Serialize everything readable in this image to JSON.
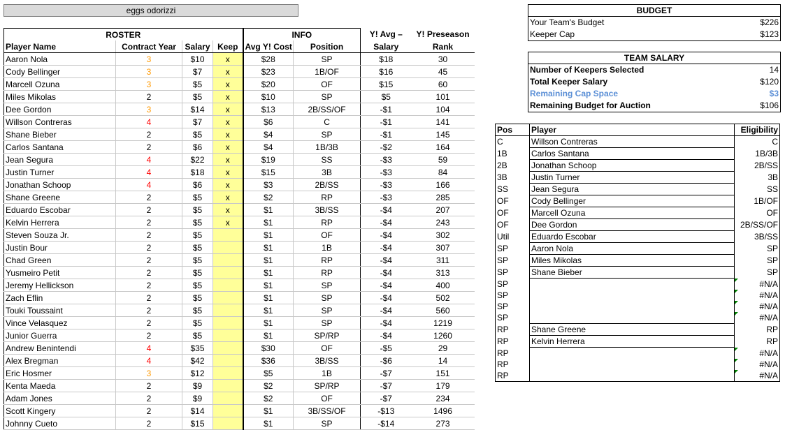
{
  "team_name": "eggs odorizzi",
  "roster": {
    "group_headers": {
      "roster": "ROSTER",
      "info": "INFO",
      "yavg": "Y! Avg –",
      "ypre": "Y! Preseason"
    },
    "col_headers": {
      "name": "Player Name",
      "cy": "Contract Year",
      "sal": "Salary",
      "keep": "Keep",
      "avg": "Avg Y! Cost",
      "pos": "Position",
      "yavg": "Salary",
      "rank": "Rank"
    },
    "rows": [
      {
        "name": "Aaron Nola",
        "cy": "3",
        "cyc": "orange",
        "sal": "$10",
        "keep": "x",
        "avg": "$28",
        "pos": "SP",
        "yavg": "$18",
        "rank": "30"
      },
      {
        "name": "Cody Bellinger",
        "cy": "3",
        "cyc": "orange",
        "sal": "$7",
        "keep": "x",
        "avg": "$23",
        "pos": "1B/OF",
        "yavg": "$16",
        "rank": "45"
      },
      {
        "name": "Marcell Ozuna",
        "cy": "3",
        "cyc": "orange",
        "sal": "$5",
        "keep": "x",
        "avg": "$20",
        "pos": "OF",
        "yavg": "$15",
        "rank": "60"
      },
      {
        "name": "Miles Mikolas",
        "cy": "2",
        "cyc": "",
        "sal": "$5",
        "keep": "x",
        "avg": "$10",
        "pos": "SP",
        "yavg": "$5",
        "rank": "101"
      },
      {
        "name": "Dee Gordon",
        "cy": "3",
        "cyc": "orange",
        "sal": "$14",
        "keep": "x",
        "avg": "$13",
        "pos": "2B/SS/OF",
        "yavg": "-$1",
        "rank": "104"
      },
      {
        "name": "Willson Contreras",
        "cy": "4",
        "cyc": "red",
        "sal": "$7",
        "keep": "x",
        "avg": "$6",
        "pos": "C",
        "yavg": "-$1",
        "rank": "141"
      },
      {
        "name": "Shane Bieber",
        "cy": "2",
        "cyc": "",
        "sal": "$5",
        "keep": "x",
        "avg": "$4",
        "pos": "SP",
        "yavg": "-$1",
        "rank": "145"
      },
      {
        "name": "Carlos Santana",
        "cy": "2",
        "cyc": "",
        "sal": "$6",
        "keep": "x",
        "avg": "$4",
        "pos": "1B/3B",
        "yavg": "-$2",
        "rank": "164"
      },
      {
        "name": "Jean Segura",
        "cy": "4",
        "cyc": "red",
        "sal": "$22",
        "keep": "x",
        "avg": "$19",
        "pos": "SS",
        "yavg": "-$3",
        "rank": "59"
      },
      {
        "name": "Justin Turner",
        "cy": "4",
        "cyc": "red",
        "sal": "$18",
        "keep": "x",
        "avg": "$15",
        "pos": "3B",
        "yavg": "-$3",
        "rank": "84"
      },
      {
        "name": "Jonathan Schoop",
        "cy": "4",
        "cyc": "red",
        "sal": "$6",
        "keep": "x",
        "avg": "$3",
        "pos": "2B/SS",
        "yavg": "-$3",
        "rank": "166"
      },
      {
        "name": "Shane Greene",
        "cy": "2",
        "cyc": "",
        "sal": "$5",
        "keep": "x",
        "avg": "$2",
        "pos": "RP",
        "yavg": "-$3",
        "rank": "285"
      },
      {
        "name": "Eduardo Escobar",
        "cy": "2",
        "cyc": "",
        "sal": "$5",
        "keep": "x",
        "avg": "$1",
        "pos": "3B/SS",
        "yavg": "-$4",
        "rank": "207"
      },
      {
        "name": "Kelvin Herrera",
        "cy": "2",
        "cyc": "",
        "sal": "$5",
        "keep": "x",
        "avg": "$1",
        "pos": "RP",
        "yavg": "-$4",
        "rank": "243"
      },
      {
        "name": "Steven Souza Jr.",
        "cy": "2",
        "cyc": "",
        "sal": "$5",
        "keep": "",
        "avg": "$1",
        "pos": "OF",
        "yavg": "-$4",
        "rank": "302"
      },
      {
        "name": "Justin Bour",
        "cy": "2",
        "cyc": "",
        "sal": "$5",
        "keep": "",
        "avg": "$1",
        "pos": "1B",
        "yavg": "-$4",
        "rank": "307"
      },
      {
        "name": "Chad Green",
        "cy": "2",
        "cyc": "",
        "sal": "$5",
        "keep": "",
        "avg": "$1",
        "pos": "RP",
        "yavg": "-$4",
        "rank": "311"
      },
      {
        "name": "Yusmeiro Petit",
        "cy": "2",
        "cyc": "",
        "sal": "$5",
        "keep": "",
        "avg": "$1",
        "pos": "RP",
        "yavg": "-$4",
        "rank": "313"
      },
      {
        "name": "Jeremy Hellickson",
        "cy": "2",
        "cyc": "",
        "sal": "$5",
        "keep": "",
        "avg": "$1",
        "pos": "SP",
        "yavg": "-$4",
        "rank": "400"
      },
      {
        "name": "Zach Eflin",
        "cy": "2",
        "cyc": "",
        "sal": "$5",
        "keep": "",
        "avg": "$1",
        "pos": "SP",
        "yavg": "-$4",
        "rank": "502"
      },
      {
        "name": "Touki Toussaint",
        "cy": "2",
        "cyc": "",
        "sal": "$5",
        "keep": "",
        "avg": "$1",
        "pos": "SP",
        "yavg": "-$4",
        "rank": "560"
      },
      {
        "name": "Vince Velasquez",
        "cy": "2",
        "cyc": "",
        "sal": "$5",
        "keep": "",
        "avg": "$1",
        "pos": "SP",
        "yavg": "-$4",
        "rank": "1219"
      },
      {
        "name": "Junior Guerra",
        "cy": "2",
        "cyc": "",
        "sal": "$5",
        "keep": "",
        "avg": "$1",
        "pos": "SP/RP",
        "yavg": "-$4",
        "rank": "1260"
      },
      {
        "name": "Andrew Benintendi",
        "cy": "4",
        "cyc": "red",
        "sal": "$35",
        "keep": "",
        "avg": "$30",
        "pos": "OF",
        "yavg": "-$5",
        "rank": "29"
      },
      {
        "name": "Alex Bregman",
        "cy": "4",
        "cyc": "red",
        "sal": "$42",
        "keep": "",
        "avg": "$36",
        "pos": "3B/SS",
        "yavg": "-$6",
        "rank": "14"
      },
      {
        "name": "Eric Hosmer",
        "cy": "3",
        "cyc": "orange",
        "sal": "$12",
        "keep": "",
        "avg": "$5",
        "pos": "1B",
        "yavg": "-$7",
        "rank": "151"
      },
      {
        "name": "Kenta Maeda",
        "cy": "2",
        "cyc": "",
        "sal": "$9",
        "keep": "",
        "avg": "$2",
        "pos": "SP/RP",
        "yavg": "-$7",
        "rank": "179"
      },
      {
        "name": "Adam Jones",
        "cy": "2",
        "cyc": "",
        "sal": "$9",
        "keep": "",
        "avg": "$2",
        "pos": "OF",
        "yavg": "-$7",
        "rank": "234"
      },
      {
        "name": "Scott Kingery",
        "cy": "2",
        "cyc": "",
        "sal": "$14",
        "keep": "",
        "avg": "$1",
        "pos": "3B/SS/OF",
        "yavg": "-$13",
        "rank": "1496"
      },
      {
        "name": "Johnny Cueto",
        "cy": "2",
        "cyc": "",
        "sal": "$15",
        "keep": "",
        "avg": "$1",
        "pos": "SP",
        "yavg": "-$14",
        "rank": "273"
      }
    ]
  },
  "budget": {
    "title": "BUDGET",
    "items": [
      {
        "label": "Your Team's Budget",
        "value": "$226"
      },
      {
        "label": "Keeper Cap",
        "value": "$123"
      }
    ]
  },
  "team_salary": {
    "title": "TEAM SALARY",
    "items": [
      {
        "label": "Number of Keepers Selected",
        "value": "14",
        "highlight": false
      },
      {
        "label": "Total Keeper Salary",
        "value": "$120",
        "highlight": false
      },
      {
        "label": "Remaining Cap Space",
        "value": "$3",
        "highlight": true
      },
      {
        "label": "Remaining Budget for Auction",
        "value": "$106",
        "highlight": false
      }
    ]
  },
  "lineup": {
    "headers": {
      "pos": "Pos",
      "player": "Player",
      "elig": "Eligibility"
    },
    "rows": [
      {
        "pos": "C",
        "player": "Willson Contreras",
        "elig": "C",
        "flag": false
      },
      {
        "pos": "1B",
        "player": "Carlos Santana",
        "elig": "1B/3B",
        "flag": false
      },
      {
        "pos": "2B",
        "player": "Jonathan Schoop",
        "elig": "2B/SS",
        "flag": false
      },
      {
        "pos": "3B",
        "player": "Justin Turner",
        "elig": "3B",
        "flag": false
      },
      {
        "pos": "SS",
        "player": "Jean Segura",
        "elig": "SS",
        "flag": false
      },
      {
        "pos": "OF",
        "player": "Cody Bellinger",
        "elig": "1B/OF",
        "flag": false
      },
      {
        "pos": "OF",
        "player": "Marcell Ozuna",
        "elig": "OF",
        "flag": false
      },
      {
        "pos": "OF",
        "player": "Dee Gordon",
        "elig": "2B/SS/OF",
        "flag": false
      },
      {
        "pos": "Util",
        "player": "Eduardo Escobar",
        "elig": "3B/SS",
        "flag": false
      },
      {
        "pos": "SP",
        "player": "Aaron Nola",
        "elig": "SP",
        "flag": false
      },
      {
        "pos": "SP",
        "player": "Miles Mikolas",
        "elig": "SP",
        "flag": false
      },
      {
        "pos": "SP",
        "player": "Shane Bieber",
        "elig": "SP",
        "flag": false
      },
      {
        "pos": "SP",
        "player": "",
        "elig": "#N/A",
        "flag": true
      },
      {
        "pos": "SP",
        "player": "",
        "elig": "#N/A",
        "flag": true
      },
      {
        "pos": "SP",
        "player": "",
        "elig": "#N/A",
        "flag": true
      },
      {
        "pos": "SP",
        "player": "",
        "elig": "#N/A",
        "flag": true
      },
      {
        "pos": "RP",
        "player": "Shane Greene",
        "elig": "RP",
        "flag": false
      },
      {
        "pos": "RP",
        "player": "Kelvin Herrera",
        "elig": "RP",
        "flag": false
      },
      {
        "pos": "RP",
        "player": "",
        "elig": "#N/A",
        "flag": true
      },
      {
        "pos": "RP",
        "player": "",
        "elig": "#N/A",
        "flag": true
      },
      {
        "pos": "RP",
        "player": "",
        "elig": "#N/A",
        "flag": true
      }
    ]
  }
}
